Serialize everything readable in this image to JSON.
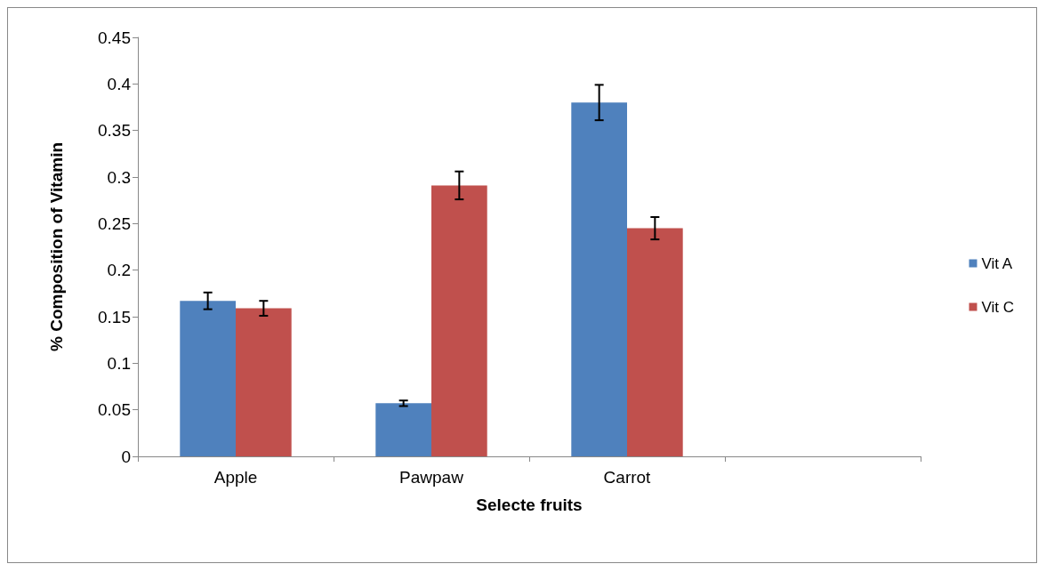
{
  "chart_data": {
    "type": "bar",
    "xlabel": "Selecte fruits",
    "ylabel": "% Composition of Vitamin",
    "categories": [
      "Apple",
      "Pawpaw",
      "Carrot",
      null
    ],
    "series": [
      {
        "name": "Vit A",
        "color": "#4f81bd",
        "values": [
          0.167,
          0.057,
          0.38,
          null
        ],
        "errors": [
          0.009,
          0.003,
          0.019,
          null
        ]
      },
      {
        "name": "Vit C",
        "color": "#c0504d",
        "values": [
          0.159,
          0.291,
          0.245,
          null
        ],
        "errors": [
          0.008,
          0.015,
          0.012,
          null
        ]
      }
    ],
    "ylim": [
      0,
      0.45
    ],
    "yticks": [
      0,
      0.05,
      0.1,
      0.15,
      0.2,
      0.25,
      0.3,
      0.35,
      0.4,
      0.45
    ],
    "grid": false,
    "legend": "right"
  }
}
